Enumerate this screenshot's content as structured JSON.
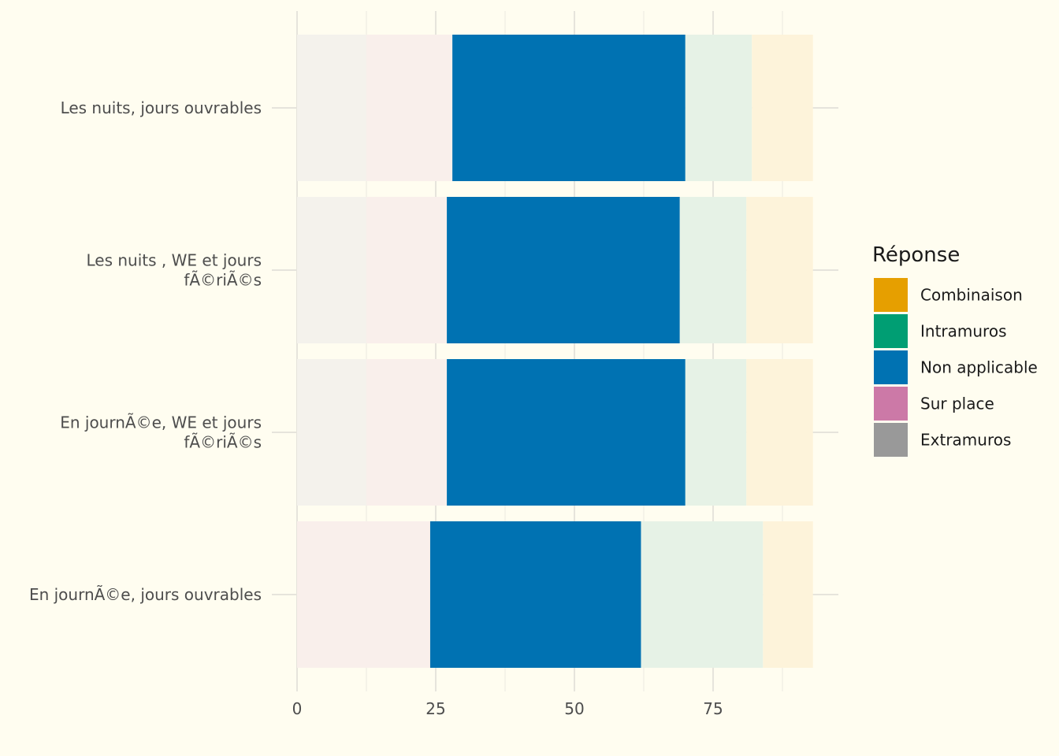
{
  "chart_data": {
    "type": "bar",
    "orientation": "horizontal",
    "stacked": true,
    "categories": [
      "Les nuits, jours ouvrables",
      "Les nuits , WE et jours fÃ©riÃ©s",
      "En journÃ©e, WE et jours fÃ©riÃ©s",
      "En journÃ©e, jours ouvrables"
    ],
    "category_lines": [
      [
        "Les nuits, jours ouvrables"
      ],
      [
        "Les nuits , WE et jours",
        "fÃ©riÃ©s"
      ],
      [
        "En journÃ©e, WE et jours",
        "fÃ©riÃ©s"
      ],
      [
        "En journÃ©e, jours ouvrables"
      ]
    ],
    "stack_order": [
      "Extramuros",
      "Sur place",
      "Non applicable",
      "Intramuros",
      "Combinaison"
    ],
    "series": [
      {
        "name": "Extramuros",
        "values": [
          12.5,
          12.5,
          12.5,
          0
        ]
      },
      {
        "name": "Sur place",
        "values": [
          15.5,
          14.5,
          14.5,
          24
        ]
      },
      {
        "name": "Non applicable",
        "values": [
          42,
          42,
          43,
          38
        ]
      },
      {
        "name": "Intramuros",
        "values": [
          12,
          12,
          11,
          22
        ]
      },
      {
        "name": "Combinaison",
        "values": [
          11,
          12,
          12,
          9
        ]
      }
    ],
    "highlighted_series": "Non applicable",
    "xlim": [
      0,
      97.5
    ],
    "xticks": [
      0,
      25,
      50,
      75
    ],
    "xlabel": "",
    "ylabel": "",
    "grid": true,
    "legend": {
      "title": "Réponse",
      "placement": "right",
      "entries": [
        "Combinaison",
        "Intramuros",
        "Non applicable",
        "Sur place",
        "Extramuros"
      ]
    },
    "colors": {
      "Combinaison": "#E69F00",
      "Intramuros": "#009E73",
      "Non applicable": "#0072B2",
      "Sur place": "#CC79A7",
      "Extramuros": "#999999"
    },
    "faded_colors": {
      "Combinaison": "#fdf3da",
      "Intramuros": "#e6f2e6",
      "Sur place": "#f9efeb",
      "Extramuros": "#f4f2ec"
    },
    "background": "#fffdf0"
  }
}
